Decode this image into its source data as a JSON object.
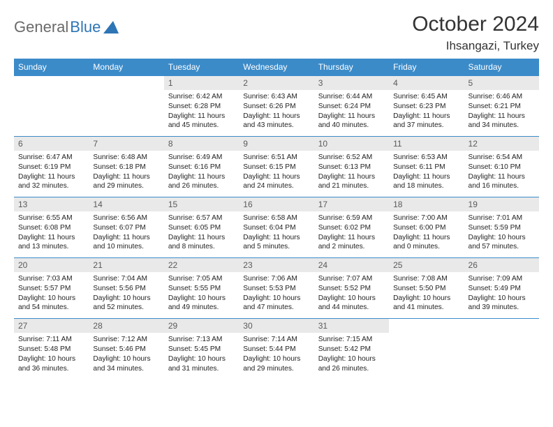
{
  "brand": {
    "part1": "General",
    "part2": "Blue"
  },
  "title": "October 2024",
  "location": "Ihsangazi, Turkey",
  "colors": {
    "header_bg": "#3b8bc9",
    "header_text": "#ffffff",
    "daynum_bg": "#e9e9e9",
    "daynum_text": "#5a5a5a",
    "border": "#3b8bc9",
    "brand_gray": "#6a6a6a",
    "brand_blue": "#2e75b6"
  },
  "weekdays": [
    "Sunday",
    "Monday",
    "Tuesday",
    "Wednesday",
    "Thursday",
    "Friday",
    "Saturday"
  ],
  "weeks": [
    [
      null,
      null,
      {
        "n": "1",
        "sunrise": "6:42 AM",
        "sunset": "6:28 PM",
        "daylight": "11 hours and 45 minutes."
      },
      {
        "n": "2",
        "sunrise": "6:43 AM",
        "sunset": "6:26 PM",
        "daylight": "11 hours and 43 minutes."
      },
      {
        "n": "3",
        "sunrise": "6:44 AM",
        "sunset": "6:24 PM",
        "daylight": "11 hours and 40 minutes."
      },
      {
        "n": "4",
        "sunrise": "6:45 AM",
        "sunset": "6:23 PM",
        "daylight": "11 hours and 37 minutes."
      },
      {
        "n": "5",
        "sunrise": "6:46 AM",
        "sunset": "6:21 PM",
        "daylight": "11 hours and 34 minutes."
      }
    ],
    [
      {
        "n": "6",
        "sunrise": "6:47 AM",
        "sunset": "6:19 PM",
        "daylight": "11 hours and 32 minutes."
      },
      {
        "n": "7",
        "sunrise": "6:48 AM",
        "sunset": "6:18 PM",
        "daylight": "11 hours and 29 minutes."
      },
      {
        "n": "8",
        "sunrise": "6:49 AM",
        "sunset": "6:16 PM",
        "daylight": "11 hours and 26 minutes."
      },
      {
        "n": "9",
        "sunrise": "6:51 AM",
        "sunset": "6:15 PM",
        "daylight": "11 hours and 24 minutes."
      },
      {
        "n": "10",
        "sunrise": "6:52 AM",
        "sunset": "6:13 PM",
        "daylight": "11 hours and 21 minutes."
      },
      {
        "n": "11",
        "sunrise": "6:53 AM",
        "sunset": "6:11 PM",
        "daylight": "11 hours and 18 minutes."
      },
      {
        "n": "12",
        "sunrise": "6:54 AM",
        "sunset": "6:10 PM",
        "daylight": "11 hours and 16 minutes."
      }
    ],
    [
      {
        "n": "13",
        "sunrise": "6:55 AM",
        "sunset": "6:08 PM",
        "daylight": "11 hours and 13 minutes."
      },
      {
        "n": "14",
        "sunrise": "6:56 AM",
        "sunset": "6:07 PM",
        "daylight": "11 hours and 10 minutes."
      },
      {
        "n": "15",
        "sunrise": "6:57 AM",
        "sunset": "6:05 PM",
        "daylight": "11 hours and 8 minutes."
      },
      {
        "n": "16",
        "sunrise": "6:58 AM",
        "sunset": "6:04 PM",
        "daylight": "11 hours and 5 minutes."
      },
      {
        "n": "17",
        "sunrise": "6:59 AM",
        "sunset": "6:02 PM",
        "daylight": "11 hours and 2 minutes."
      },
      {
        "n": "18",
        "sunrise": "7:00 AM",
        "sunset": "6:00 PM",
        "daylight": "11 hours and 0 minutes."
      },
      {
        "n": "19",
        "sunrise": "7:01 AM",
        "sunset": "5:59 PM",
        "daylight": "10 hours and 57 minutes."
      }
    ],
    [
      {
        "n": "20",
        "sunrise": "7:03 AM",
        "sunset": "5:57 PM",
        "daylight": "10 hours and 54 minutes."
      },
      {
        "n": "21",
        "sunrise": "7:04 AM",
        "sunset": "5:56 PM",
        "daylight": "10 hours and 52 minutes."
      },
      {
        "n": "22",
        "sunrise": "7:05 AM",
        "sunset": "5:55 PM",
        "daylight": "10 hours and 49 minutes."
      },
      {
        "n": "23",
        "sunrise": "7:06 AM",
        "sunset": "5:53 PM",
        "daylight": "10 hours and 47 minutes."
      },
      {
        "n": "24",
        "sunrise": "7:07 AM",
        "sunset": "5:52 PM",
        "daylight": "10 hours and 44 minutes."
      },
      {
        "n": "25",
        "sunrise": "7:08 AM",
        "sunset": "5:50 PM",
        "daylight": "10 hours and 41 minutes."
      },
      {
        "n": "26",
        "sunrise": "7:09 AM",
        "sunset": "5:49 PM",
        "daylight": "10 hours and 39 minutes."
      }
    ],
    [
      {
        "n": "27",
        "sunrise": "7:11 AM",
        "sunset": "5:48 PM",
        "daylight": "10 hours and 36 minutes."
      },
      {
        "n": "28",
        "sunrise": "7:12 AM",
        "sunset": "5:46 PM",
        "daylight": "10 hours and 34 minutes."
      },
      {
        "n": "29",
        "sunrise": "7:13 AM",
        "sunset": "5:45 PM",
        "daylight": "10 hours and 31 minutes."
      },
      {
        "n": "30",
        "sunrise": "7:14 AM",
        "sunset": "5:44 PM",
        "daylight": "10 hours and 29 minutes."
      },
      {
        "n": "31",
        "sunrise": "7:15 AM",
        "sunset": "5:42 PM",
        "daylight": "10 hours and 26 minutes."
      },
      null,
      null
    ]
  ],
  "labels": {
    "sunrise": "Sunrise:",
    "sunset": "Sunset:",
    "daylight": "Daylight:"
  }
}
